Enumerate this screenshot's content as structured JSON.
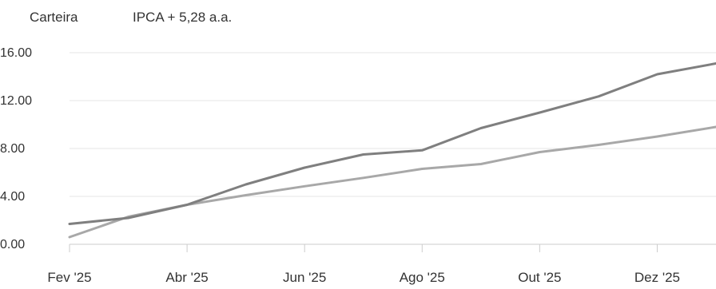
{
  "chart_data": {
    "type": "line",
    "title": "",
    "xlabel": "",
    "ylabel": "",
    "ylim": [
      0,
      16
    ],
    "grid": true,
    "legend_placement": "top-left",
    "y_ticks": [
      "0.00",
      "4.00",
      "8.00",
      "12.00",
      "16.00"
    ],
    "x_tick_labels": [
      "Fev '25",
      "Abr '25",
      "Jun '25",
      "Ago '25",
      "Out '25",
      "Dez '25"
    ],
    "x": [
      "Fev '25",
      "Mar '25",
      "Abr '25",
      "Mai '25",
      "Jun '25",
      "Jul '25",
      "Ago '25",
      "Set '25",
      "Out '25",
      "Nov '25",
      "Dez '25",
      "Jan '26"
    ],
    "series": [
      {
        "name": "Carteira",
        "color": "#7f7f7f",
        "values": [
          1.7,
          2.2,
          3.3,
          5.0,
          6.4,
          7.5,
          7.85,
          9.7,
          11.0,
          12.35,
          14.2,
          15.1
        ]
      },
      {
        "name": "IPCA + 5,28 a.a.",
        "color": "#a8a8a8",
        "values": [
          0.6,
          2.3,
          3.3,
          4.1,
          4.85,
          5.55,
          6.3,
          6.7,
          7.7,
          8.3,
          9.0,
          9.8
        ]
      }
    ]
  }
}
